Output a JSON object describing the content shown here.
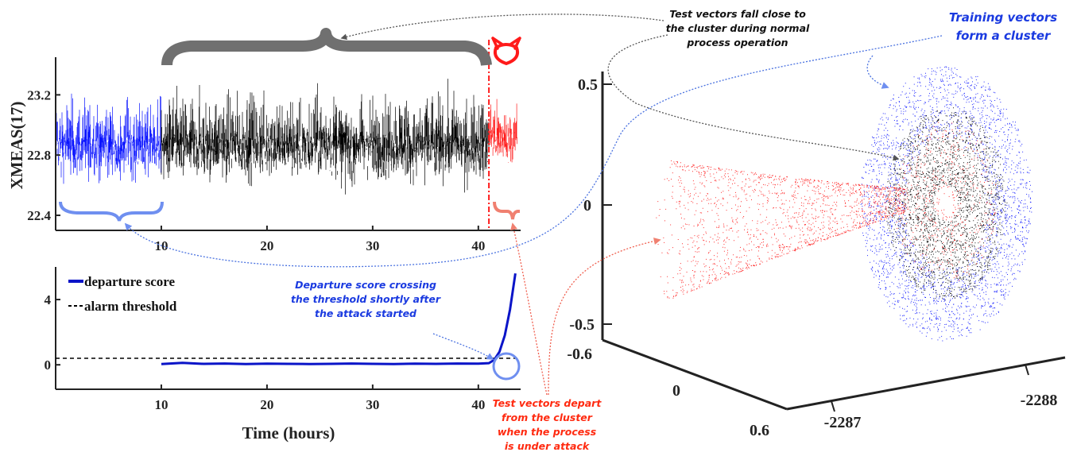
{
  "colors": {
    "training": "#0a14ff",
    "test_normal": "#000000",
    "attack": "#ff1a1a",
    "brace_gray": "#707070",
    "brace_blue": "#6f8ff0",
    "brace_red": "#f08070",
    "score_line": "#0a14c8",
    "annotation_blue": "#1a3ae0",
    "annotation_red": "#ff2a10",
    "annotation_black": "#111111"
  },
  "chart_data": [
    {
      "type": "line",
      "name": "xmeas-timeseries",
      "ylabel": "XMEAS(17)",
      "xlabel": "",
      "xlim": [
        0,
        44
      ],
      "ylim": [
        22.3,
        23.45
      ],
      "xticks": [
        "10",
        "20",
        "30",
        "40"
      ],
      "xtick_values": [
        10,
        20,
        30,
        40
      ],
      "yticks": [
        "22.4",
        "22.8",
        "23.2"
      ],
      "ytick_values": [
        22.4,
        22.8,
        23.2
      ],
      "segments": [
        {
          "label": "training",
          "x_start": 0,
          "x_end": 10,
          "color": "#0a14ff",
          "center": 22.93,
          "half_range": 0.3
        },
        {
          "label": "normal",
          "x_start": 10,
          "x_end": 41,
          "color": "#000000",
          "center": 22.93,
          "half_range": 0.33
        },
        {
          "label": "attack",
          "x_start": 41,
          "x_end": 43.7,
          "color": "#ff1a1a",
          "center": 22.95,
          "half_range": 0.25
        }
      ],
      "attack_start": 41,
      "grid": false
    },
    {
      "type": "line",
      "name": "departure-score",
      "xlabel": "Time (hours)",
      "ylabel": "",
      "xlim": [
        0,
        44
      ],
      "ylim": [
        -1.5,
        6
      ],
      "xticks": [
        "10",
        "20",
        "30",
        "40"
      ],
      "xtick_values": [
        10,
        20,
        30,
        40
      ],
      "yticks": [
        "0",
        "4"
      ],
      "ytick_values": [
        0,
        4
      ],
      "legend": [
        "departure score",
        "alarm threshold"
      ],
      "legend_position": "top-left",
      "series": [
        {
          "name": "departure score",
          "x": [
            10,
            12,
            14,
            16,
            18,
            20,
            22,
            24,
            26,
            28,
            30,
            32,
            34,
            36,
            38,
            40,
            41,
            41.5,
            42,
            42.5,
            43,
            43.5
          ],
          "values": [
            0.05,
            0.12,
            0.06,
            0.08,
            0.05,
            0.07,
            0.06,
            0.05,
            0.06,
            0.08,
            0.06,
            0.05,
            0.07,
            0.06,
            0.08,
            0.07,
            0.1,
            0.3,
            0.8,
            1.8,
            3.4,
            5.6
          ]
        },
        {
          "name": "alarm threshold",
          "x": [
            0,
            44
          ],
          "values": [
            0.4,
            0.4
          ]
        }
      ],
      "grid": false
    },
    {
      "type": "scatter",
      "name": "3d-cluster",
      "dimensions": 3,
      "axis1_ticks": [
        "-0.6",
        "0",
        "0.6"
      ],
      "axis2_ticks": [
        "-2287",
        "-2288"
      ],
      "z_ticks": [
        "0.5",
        "0",
        "-0.5"
      ],
      "series": [
        {
          "name": "training",
          "color": "#0a14ff"
        },
        {
          "name": "test normal",
          "color": "#000000"
        },
        {
          "name": "test attack",
          "color": "#ff1a1a"
        }
      ],
      "grid": false
    }
  ],
  "annotations": {
    "test_close_line1": "Test vectors fall close to",
    "test_close_line2": "the cluster during normal",
    "test_close_line3": "process operation",
    "training_line1": "Training vectors",
    "training_line2": "form a cluster",
    "crossing_line1": "Departure score crossing",
    "crossing_line2": "the threshold shortly after",
    "crossing_line3": "the attack started",
    "depart_line1": "Test vectors depart",
    "depart_line2": "from the cluster",
    "depart_line3": "when the process",
    "depart_line4": "is under attack"
  }
}
